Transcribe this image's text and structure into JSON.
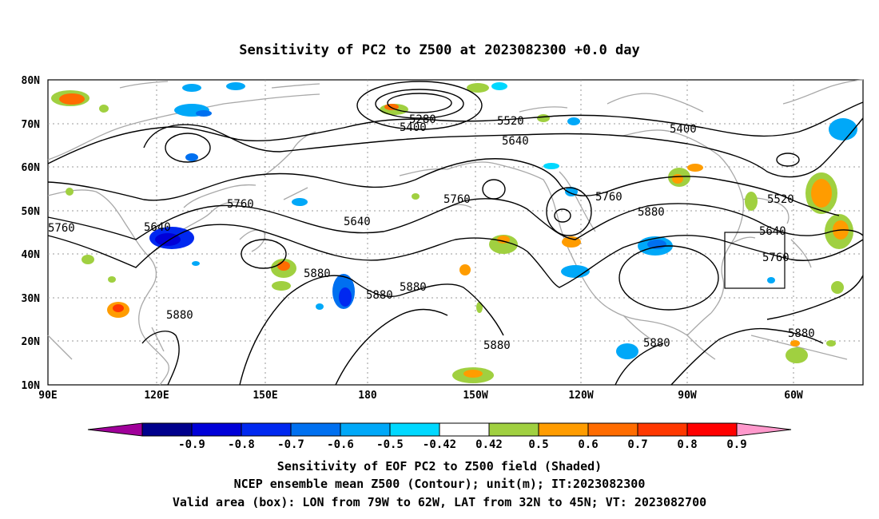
{
  "title": "Sensitivity of PC2 to Z500 at 2023082300 +0.0 day",
  "map": {
    "lat_labels": [
      "80N",
      "70N",
      "60N",
      "50N",
      "40N",
      "30N",
      "20N",
      "10N"
    ],
    "lon_labels": [
      "90E",
      "120E",
      "150E",
      "180",
      "150W",
      "120W",
      "90W",
      "60W"
    ],
    "contour_labels": [
      "5280",
      "5400",
      "5520",
      "5400",
      "5640",
      "5520",
      "5760",
      "5640",
      "5760",
      "5640",
      "5760",
      "5880",
      "5640",
      "5760",
      "5880",
      "5880",
      "5880",
      "5880",
      "5880",
      "5880",
      "5880",
      "5880",
      "5760"
    ],
    "valid_box": {
      "lon_from": "79W",
      "lon_to": "62W",
      "lat_from": "32N",
      "lat_to": "45N"
    }
  },
  "colorbar": {
    "labels": [
      "-0.9",
      "-0.8",
      "-0.7",
      "-0.6",
      "-0.5",
      "-0.42",
      "0.42",
      "0.5",
      "0.6",
      "0.7",
      "0.8",
      "0.9"
    ],
    "colors": [
      "#a0009a",
      "#00008c",
      "#0000d8",
      "#0028f0",
      "#0070f0",
      "#00a8f8",
      "#00d8ff",
      "#ffffff",
      "#a0d040",
      "#ff9c00",
      "#ff6c00",
      "#ff3800",
      "#ff0000",
      "#ff99cc"
    ]
  },
  "footer": {
    "line1": "Sensitivity of EOF PC2 to Z500 field (Shaded)",
    "line2": "NCEP ensemble mean Z500 (Contour); unit(m); IT:2023082300",
    "line3": "Valid area (box): LON from 79W to 62W, LAT from 32N to 45N; VT: 2023082700"
  }
}
